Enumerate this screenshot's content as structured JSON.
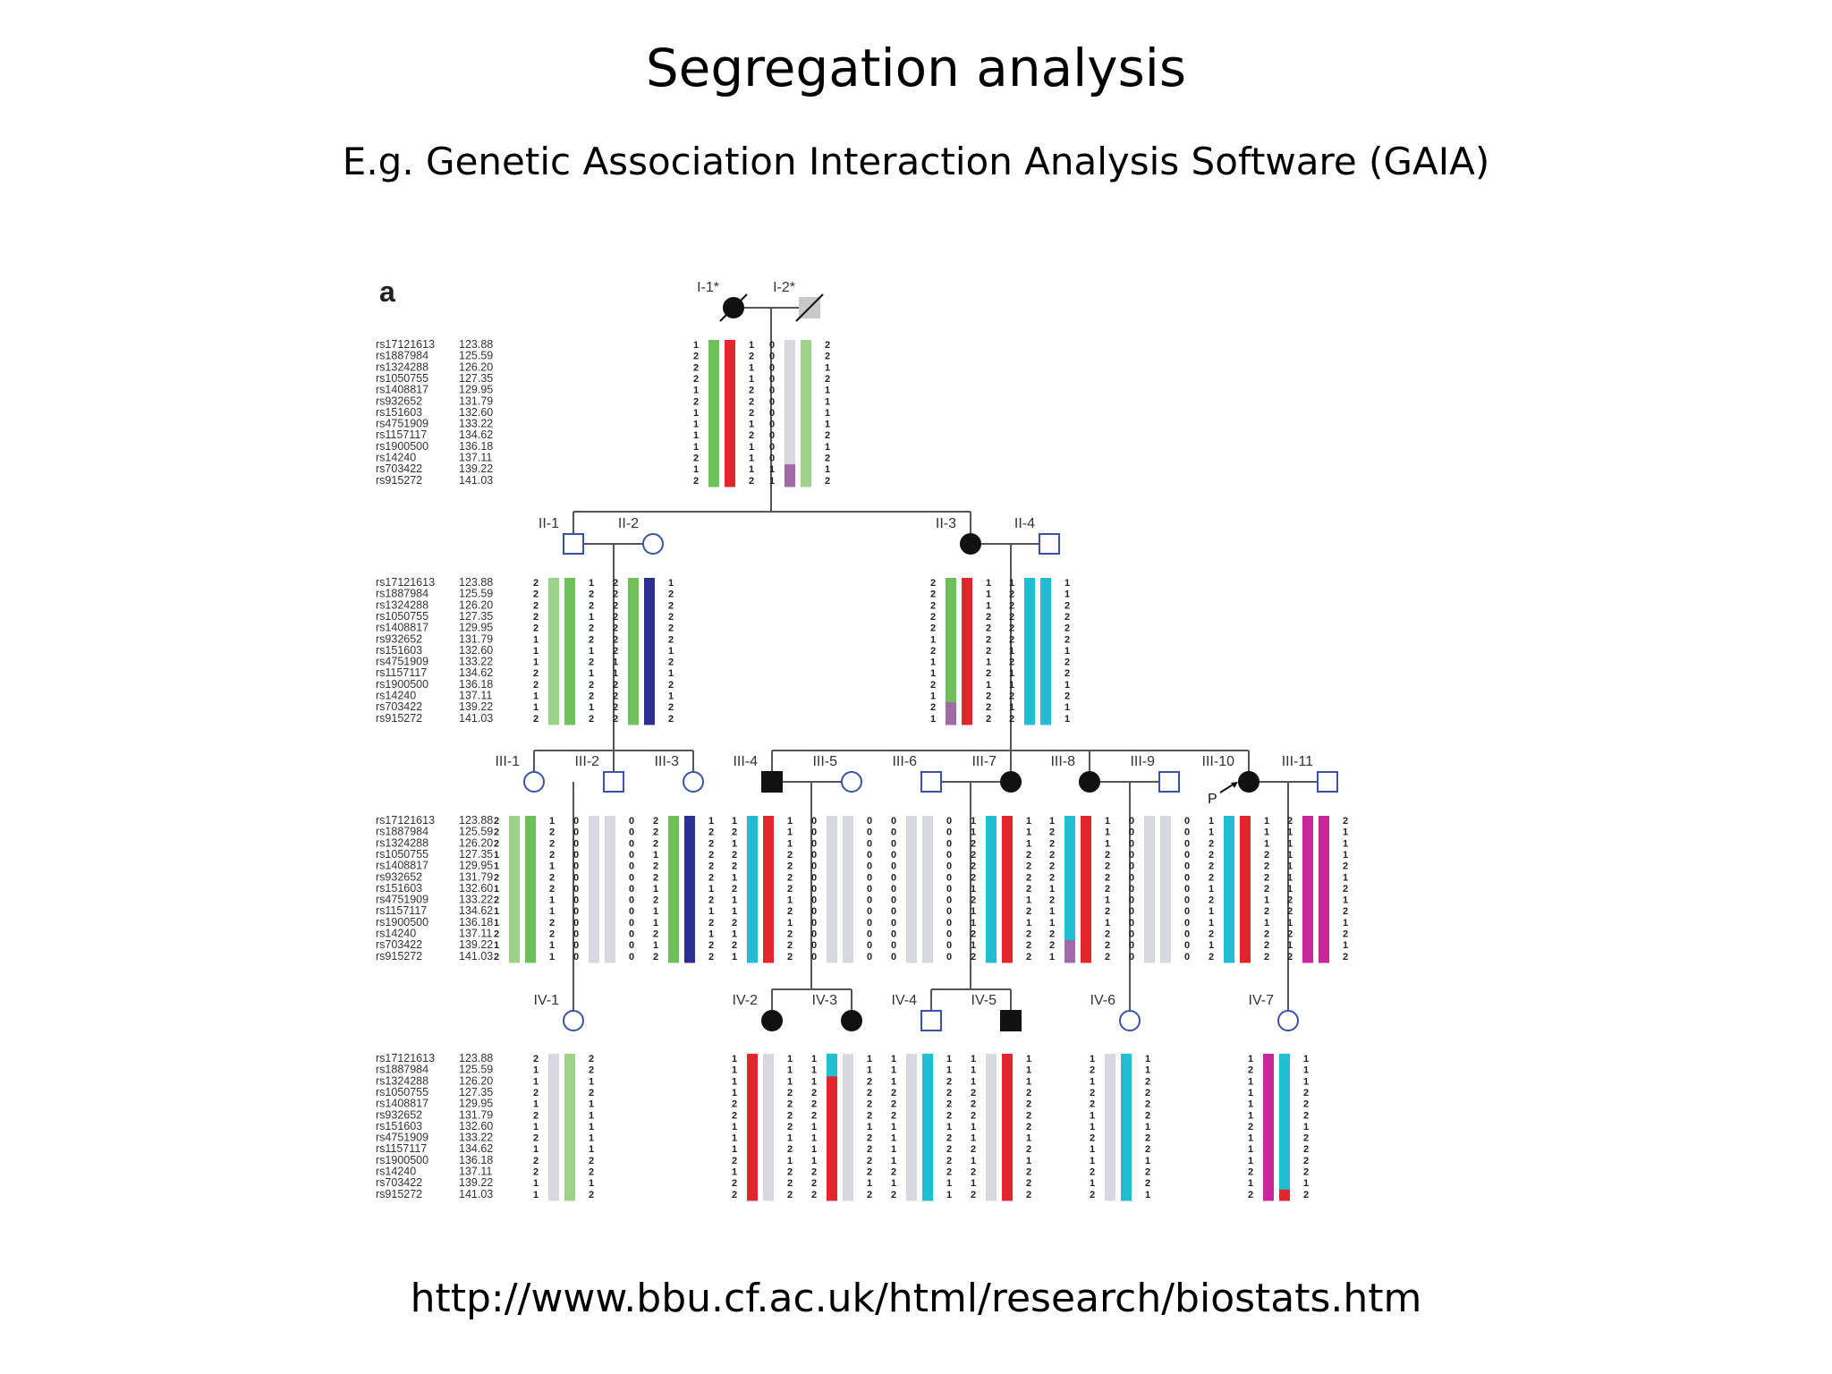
{
  "slide": {
    "title": "Segregation analysis",
    "subtitle": "E.g. Genetic Association Interaction Analysis Software (GAIA)",
    "url": "http://www.bbu.cf.ac.uk/html/research/biostats.htm"
  },
  "figure": {
    "panel_label": "a",
    "proband_label": "P",
    "markers": [
      "rs17121613",
      "rs1887984",
      "rs1324288",
      "rs1050755",
      "rs1408817",
      "rs932652",
      "rs151603",
      "rs4751909",
      "rs1157117",
      "rs1900500",
      "rs14240",
      "rs703422",
      "rs915272"
    ],
    "positions": [
      "123.88",
      "125.59",
      "126.20",
      "127.35",
      "129.95",
      "131.79",
      "132.60",
      "133.22",
      "134.62",
      "136.18",
      "137.11",
      "139.22",
      "141.03"
    ],
    "colors": {
      "green": "#6ec05a",
      "red": "#e3262e",
      "blue": "#2d2f8f",
      "cyan": "#22bcd3",
      "magenta": "#c7279a",
      "grey": "#d8d8e0",
      "purple": "#a06aa8",
      "lightgreen": "#9ed28a"
    },
    "individuals": [
      {
        "id": "I-1",
        "label": "I-1*",
        "sex": "female",
        "affected": true,
        "deceased": true,
        "a1": [
          "1",
          "2",
          "2",
          "2",
          "1",
          "2",
          "1",
          "1",
          "1",
          "1",
          "2",
          "1",
          "2"
        ],
        "a2": [
          "1",
          "2",
          "1",
          "1",
          "2",
          "2",
          "2",
          "1",
          "2",
          "1",
          "1",
          "1",
          "2"
        ],
        "bars": [
          {
            "c": "green"
          },
          {
            "c": "red"
          }
        ]
      },
      {
        "id": "I-2",
        "label": "I-2*",
        "sex": "male",
        "affected": false,
        "unknown": true,
        "deceased": true,
        "a1": [
          "0",
          "0",
          "0",
          "0",
          "0",
          "0",
          "0",
          "0",
          "0",
          "0",
          "0",
          "1",
          "1"
        ],
        "a2": [
          "2",
          "2",
          "1",
          "2",
          "1",
          "1",
          "1",
          "1",
          "2",
          "1",
          "2",
          "1",
          "2"
        ],
        "bars": [
          {
            "c": "grey",
            "patch": {
              "c": "purple",
              "from": 11
            }
          },
          {
            "c": "lightgreen"
          }
        ]
      },
      {
        "id": "II-1",
        "label": "II-1",
        "sex": "male",
        "affected": false,
        "a1": [
          "2",
          "2",
          "2",
          "2",
          "2",
          "1",
          "1",
          "1",
          "2",
          "2",
          "1",
          "1",
          "2"
        ],
        "a2": [
          "1",
          "2",
          "2",
          "1",
          "2",
          "2",
          "1",
          "2",
          "1",
          "2",
          "2",
          "1",
          "2"
        ],
        "bars": [
          {
            "c": "lightgreen"
          },
          {
            "c": "green"
          }
        ]
      },
      {
        "id": "II-2",
        "label": "II-2",
        "sex": "female",
        "affected": false,
        "a1": [
          "2",
          "2",
          "2",
          "2",
          "2",
          "2",
          "2",
          "1",
          "1",
          "2",
          "2",
          "2",
          "2"
        ],
        "a2": [
          "1",
          "2",
          "2",
          "2",
          "2",
          "2",
          "1",
          "2",
          "1",
          "2",
          "1",
          "2",
          "2"
        ],
        "bars": [
          {
            "c": "green"
          },
          {
            "c": "blue"
          }
        ]
      },
      {
        "id": "II-3",
        "label": "II-3",
        "sex": "female",
        "affected": true,
        "a1": [
          "2",
          "2",
          "2",
          "2",
          "2",
          "1",
          "2",
          "1",
          "1",
          "2",
          "1",
          "2",
          "1"
        ],
        "a2": [
          "1",
          "1",
          "1",
          "2",
          "2",
          "2",
          "2",
          "1",
          "2",
          "1",
          "2",
          "2",
          "2"
        ],
        "bars": [
          {
            "c": "green",
            "patch": {
              "c": "purple",
              "from": 11
            }
          },
          {
            "c": "red"
          }
        ]
      },
      {
        "id": "II-4",
        "label": "II-4",
        "sex": "male",
        "affected": false,
        "a1": [
          "1",
          "2",
          "2",
          "2",
          "2",
          "2",
          "1",
          "2",
          "1",
          "1",
          "2",
          "1",
          "2"
        ],
        "a2": [
          "1",
          "1",
          "2",
          "2",
          "2",
          "2",
          "1",
          "2",
          "2",
          "1",
          "2",
          "1",
          "1"
        ],
        "bars": [
          {
            "c": "cyan"
          },
          {
            "c": "cyan"
          }
        ]
      },
      {
        "id": "III-1",
        "label": "III-1",
        "sex": "female",
        "affected": false,
        "a1": [
          "2",
          "2",
          "2",
          "1",
          "1",
          "2",
          "1",
          "2",
          "1",
          "1",
          "2",
          "1",
          "2"
        ],
        "a2": [
          "1",
          "2",
          "2",
          "2",
          "1",
          "2",
          "2",
          "1",
          "1",
          "2",
          "2",
          "1",
          "1"
        ],
        "bars": [
          {
            "c": "lightgreen"
          },
          {
            "c": "green"
          }
        ]
      },
      {
        "id": "III-2",
        "label": "III-2",
        "sex": "male",
        "affected": false,
        "a1": [
          "0",
          "0",
          "0",
          "0",
          "0",
          "0",
          "0",
          "0",
          "0",
          "0",
          "0",
          "0",
          "0"
        ],
        "a2": [
          "0",
          "0",
          "0",
          "0",
          "0",
          "0",
          "0",
          "0",
          "0",
          "0",
          "0",
          "0",
          "0"
        ],
        "bars": [
          {
            "c": "grey"
          },
          {
            "c": "grey"
          }
        ]
      },
      {
        "id": "III-3",
        "label": "III-3",
        "sex": "female",
        "affected": false,
        "a1": [
          "2",
          "2",
          "2",
          "1",
          "2",
          "2",
          "1",
          "2",
          "1",
          "1",
          "2",
          "1",
          "2"
        ],
        "a2": [
          "1",
          "2",
          "2",
          "2",
          "2",
          "2",
          "1",
          "2",
          "1",
          "2",
          "1",
          "2",
          "2"
        ],
        "bars": [
          {
            "c": "green"
          },
          {
            "c": "blue"
          }
        ]
      },
      {
        "id": "III-4",
        "label": "III-4",
        "sex": "male",
        "affected": true,
        "a1": [
          "1",
          "2",
          "1",
          "2",
          "2",
          "1",
          "2",
          "1",
          "1",
          "2",
          "1",
          "2",
          "1"
        ],
        "a2": [
          "1",
          "1",
          "1",
          "2",
          "2",
          "2",
          "2",
          "1",
          "2",
          "1",
          "2",
          "2",
          "2"
        ],
        "bars": [
          {
            "c": "cyan"
          },
          {
            "c": "red"
          }
        ]
      },
      {
        "id": "III-5",
        "label": "III-5",
        "sex": "female",
        "affected": false,
        "a1": [
          "0",
          "0",
          "0",
          "0",
          "0",
          "0",
          "0",
          "0",
          "0",
          "0",
          "0",
          "0",
          "0"
        ],
        "a2": [
          "0",
          "0",
          "0",
          "0",
          "0",
          "0",
          "0",
          "0",
          "0",
          "0",
          "0",
          "0",
          "0"
        ],
        "bars": [
          {
            "c": "grey"
          },
          {
            "c": "grey"
          }
        ]
      },
      {
        "id": "III-6",
        "label": "III-6",
        "sex": "male",
        "affected": false,
        "a1": [
          "0",
          "0",
          "0",
          "0",
          "0",
          "0",
          "0",
          "0",
          "0",
          "0",
          "0",
          "0",
          "0"
        ],
        "a2": [
          "0",
          "0",
          "0",
          "0",
          "0",
          "0",
          "0",
          "0",
          "0",
          "0",
          "0",
          "0",
          "0"
        ],
        "bars": [
          {
            "c": "grey"
          },
          {
            "c": "grey"
          }
        ]
      },
      {
        "id": "III-7",
        "label": "III-7",
        "sex": "female",
        "affected": true,
        "a1": [
          "1",
          "1",
          "2",
          "2",
          "2",
          "2",
          "1",
          "2",
          "1",
          "1",
          "2",
          "1",
          "2"
        ],
        "a2": [
          "1",
          "1",
          "1",
          "2",
          "2",
          "2",
          "2",
          "1",
          "2",
          "1",
          "2",
          "2",
          "2"
        ],
        "bars": [
          {
            "c": "cyan"
          },
          {
            "c": "red"
          }
        ]
      },
      {
        "id": "III-8",
        "label": "III-8",
        "sex": "female",
        "affected": true,
        "a1": [
          "1",
          "2",
          "2",
          "2",
          "2",
          "2",
          "1",
          "2",
          "1",
          "1",
          "2",
          "2",
          "1"
        ],
        "a2": [
          "1",
          "1",
          "1",
          "2",
          "2",
          "2",
          "2",
          "1",
          "2",
          "1",
          "2",
          "2",
          "2"
        ],
        "bars": [
          {
            "c": "cyan",
            "patch": {
              "c": "purple",
              "from": 11
            }
          },
          {
            "c": "red"
          }
        ]
      },
      {
        "id": "III-9",
        "label": "III-9",
        "sex": "male",
        "affected": false,
        "a1": [
          "0",
          "0",
          "0",
          "0",
          "0",
          "0",
          "0",
          "0",
          "0",
          "0",
          "0",
          "0",
          "0"
        ],
        "a2": [
          "0",
          "0",
          "0",
          "0",
          "0",
          "0",
          "0",
          "0",
          "0",
          "0",
          "0",
          "0",
          "0"
        ],
        "bars": [
          {
            "c": "grey"
          },
          {
            "c": "grey"
          }
        ]
      },
      {
        "id": "III-10",
        "label": "III-10",
        "sex": "female",
        "affected": true,
        "proband": true,
        "a1": [
          "1",
          "1",
          "2",
          "2",
          "2",
          "2",
          "1",
          "2",
          "1",
          "1",
          "2",
          "1",
          "2"
        ],
        "a2": [
          "1",
          "1",
          "1",
          "2",
          "2",
          "2",
          "2",
          "1",
          "2",
          "1",
          "2",
          "2",
          "2"
        ],
        "bars": [
          {
            "c": "cyan"
          },
          {
            "c": "red"
          }
        ]
      },
      {
        "id": "III-11",
        "label": "III-11",
        "sex": "male",
        "affected": false,
        "a1": [
          "2",
          "1",
          "1",
          "1",
          "1",
          "1",
          "1",
          "2",
          "2",
          "1",
          "2",
          "1",
          "2"
        ],
        "a2": [
          "2",
          "1",
          "1",
          "1",
          "2",
          "1",
          "2",
          "1",
          "2",
          "1",
          "2",
          "1",
          "2"
        ],
        "bars": [
          {
            "c": "magenta"
          },
          {
            "c": "magenta"
          }
        ]
      },
      {
        "id": "IV-1",
        "label": "IV-1",
        "sex": "female",
        "affected": false,
        "a1": [
          "2",
          "1",
          "1",
          "2",
          "1",
          "2",
          "1",
          "2",
          "1",
          "2",
          "2",
          "1",
          "1"
        ],
        "a2": [
          "2",
          "2",
          "1",
          "2",
          "1",
          "1",
          "1",
          "1",
          "1",
          "2",
          "2",
          "1",
          "2"
        ],
        "bars": [
          {
            "c": "grey"
          },
          {
            "c": "lightgreen"
          }
        ]
      },
      {
        "id": "IV-2",
        "label": "IV-2",
        "sex": "female",
        "affected": true,
        "a1": [
          "1",
          "1",
          "1",
          "1",
          "2",
          "2",
          "1",
          "1",
          "1",
          "2",
          "1",
          "2",
          "2"
        ],
        "a2": [
          "1",
          "1",
          "1",
          "2",
          "2",
          "2",
          "2",
          "1",
          "2",
          "1",
          "2",
          "2",
          "2"
        ],
        "bars": [
          {
            "c": "red"
          },
          {
            "c": "grey"
          }
        ]
      },
      {
        "id": "IV-3",
        "label": "IV-3",
        "sex": "female",
        "affected": true,
        "a1": [
          "1",
          "1",
          "1",
          "2",
          "2",
          "2",
          "1",
          "1",
          "1",
          "1",
          "2",
          "2",
          "2"
        ],
        "a2": [
          "1",
          "1",
          "2",
          "2",
          "2",
          "2",
          "1",
          "2",
          "2",
          "2",
          "2",
          "1",
          "2"
        ],
        "bars": [
          {
            "c": "red",
            "patch": {
              "c": "cyan",
              "from": 0,
              "to": 2
            }
          },
          {
            "c": "grey"
          }
        ]
      },
      {
        "id": "IV-4",
        "label": "IV-4",
        "sex": "male",
        "affected": false,
        "a1": [
          "1",
          "1",
          "1",
          "2",
          "2",
          "2",
          "1",
          "1",
          "1",
          "1",
          "2",
          "1",
          "2"
        ],
        "a2": [
          "1",
          "1",
          "2",
          "2",
          "2",
          "2",
          "1",
          "2",
          "2",
          "2",
          "2",
          "1",
          "1"
        ],
        "bars": [
          {
            "c": "grey"
          },
          {
            "c": "cyan"
          }
        ]
      },
      {
        "id": "IV-5",
        "label": "IV-5",
        "sex": "male",
        "affected": true,
        "a1": [
          "1",
          "1",
          "1",
          "2",
          "2",
          "2",
          "1",
          "1",
          "2",
          "1",
          "2",
          "1",
          "2"
        ],
        "a2": [
          "1",
          "1",
          "1",
          "2",
          "2",
          "2",
          "2",
          "1",
          "2",
          "1",
          "2",
          "2",
          "2"
        ],
        "bars": [
          {
            "c": "grey"
          },
          {
            "c": "red"
          }
        ]
      },
      {
        "id": "IV-6",
        "label": "IV-6",
        "sex": "female",
        "affected": false,
        "a1": [
          "1",
          "2",
          "1",
          "2",
          "2",
          "1",
          "1",
          "2",
          "1",
          "1",
          "2",
          "1",
          "2"
        ],
        "a2": [
          "1",
          "1",
          "2",
          "2",
          "2",
          "2",
          "1",
          "2",
          "2",
          "1",
          "2",
          "2",
          "1"
        ],
        "bars": [
          {
            "c": "grey"
          },
          {
            "c": "cyan"
          }
        ]
      },
      {
        "id": "IV-7",
        "label": "IV-7",
        "sex": "female",
        "affected": false,
        "a1": [
          "1",
          "2",
          "1",
          "1",
          "1",
          "1",
          "2",
          "1",
          "1",
          "1",
          "2",
          "1",
          "2"
        ],
        "a2": [
          "1",
          "1",
          "1",
          "2",
          "2",
          "2",
          "1",
          "2",
          "2",
          "2",
          "2",
          "1",
          "2"
        ],
        "bars": [
          {
            "c": "magenta"
          },
          {
            "c": "cyan",
            "patch": {
              "c": "red",
              "from": 12
            }
          }
        ]
      }
    ]
  }
}
